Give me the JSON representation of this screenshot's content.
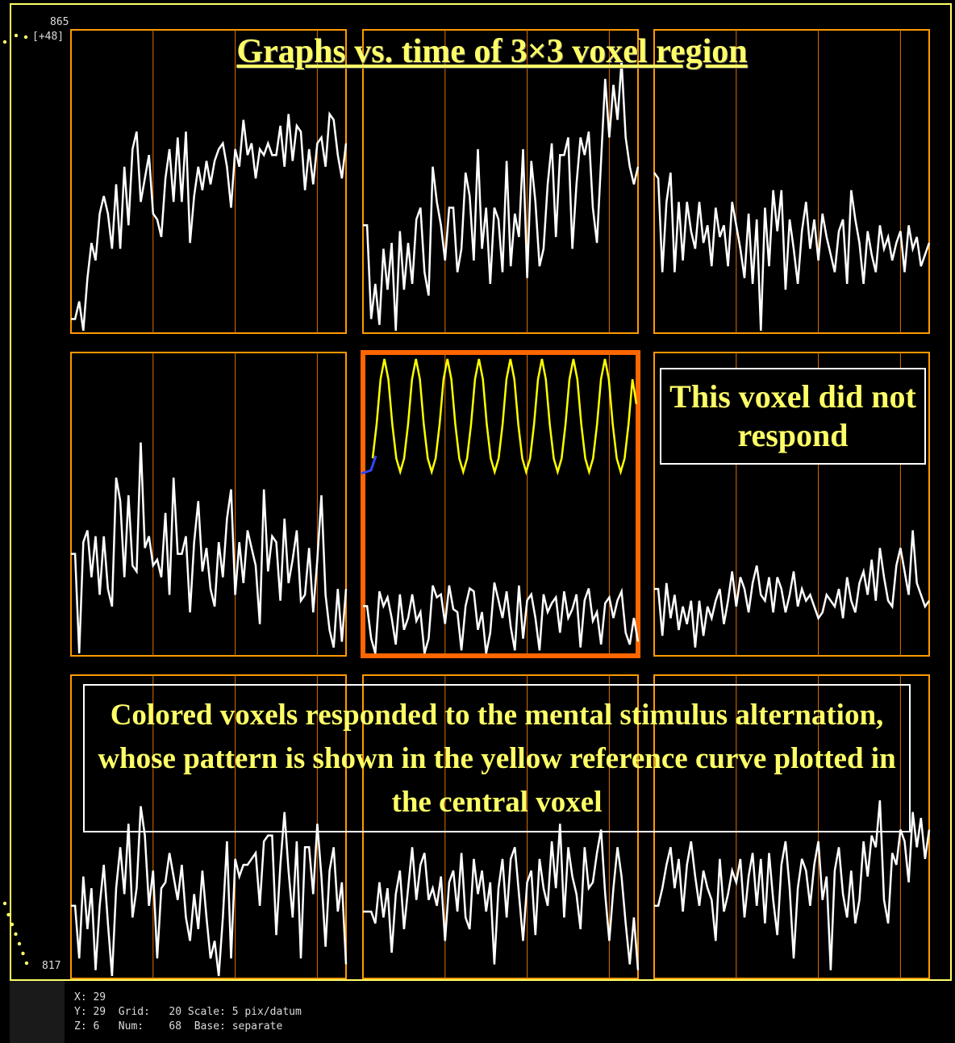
{
  "header": {
    "y_max_label": "865",
    "y_offset_label": "[+48]",
    "y_min_label": "817"
  },
  "annotations": {
    "title": "Graphs vs. time of 3×3 voxel region",
    "note_top_right": "This voxel did not respond",
    "note_bottom": "Colored voxels responded to the mental stimulus alternation, whose pattern is shown in the yellow reference curve plotted in the central voxel"
  },
  "status": {
    "x_label": "X:",
    "x_value": "29",
    "y_label": "Y:",
    "y_value": "29",
    "z_label": "Z:",
    "z_value": "6",
    "grid_label": "Grid:",
    "grid_value": "20",
    "num_label": "Num:",
    "num_value": "68",
    "scale_label": "Scale:",
    "scale_value": "5 pix/datum",
    "base_label": "Base:",
    "base_value": "separate"
  },
  "colors": {
    "frame": "#FFFF66",
    "panel_border": "#FF9900",
    "center_border": "#FF6600",
    "grid_line": "#E07000",
    "trace": "#FFFFFF",
    "reference": "#FFFF00",
    "marker": "#3344FF"
  },
  "chart_data": {
    "type": "line",
    "layout": "3x3 grid of voxel time series",
    "grid_lines_every": 20,
    "num_points": 68,
    "panels": [
      {
        "row": 0,
        "col": 0,
        "values": [
          0.04,
          0.04,
          0.1,
          0.0,
          0.18,
          0.3,
          0.24,
          0.4,
          0.46,
          0.4,
          0.28,
          0.5,
          0.28,
          0.56,
          0.36,
          0.62,
          0.68,
          0.44,
          0.52,
          0.6,
          0.4,
          0.38,
          0.32,
          0.52,
          0.62,
          0.44,
          0.66,
          0.44,
          0.68,
          0.3,
          0.46,
          0.56,
          0.48,
          0.58,
          0.5,
          0.58,
          0.62,
          0.64,
          0.56,
          0.42,
          0.62,
          0.56,
          0.72,
          0.6,
          0.64,
          0.52,
          0.62,
          0.6,
          0.64,
          0.6,
          0.6,
          0.7,
          0.56,
          0.74,
          0.58,
          0.7,
          0.68,
          0.48,
          0.62,
          0.5,
          0.64,
          0.66,
          0.56,
          0.74,
          0.72,
          0.6,
          0.52,
          0.64
        ]
      },
      {
        "row": 0,
        "col": 1,
        "values": [
          0.36,
          0.36,
          0.04,
          0.16,
          0.02,
          0.28,
          0.14,
          0.3,
          0.0,
          0.34,
          0.14,
          0.3,
          0.16,
          0.38,
          0.42,
          0.2,
          0.12,
          0.56,
          0.44,
          0.36,
          0.24,
          0.42,
          0.42,
          0.2,
          0.28,
          0.54,
          0.46,
          0.24,
          0.62,
          0.28,
          0.42,
          0.16,
          0.42,
          0.38,
          0.2,
          0.58,
          0.22,
          0.4,
          0.32,
          0.62,
          0.18,
          0.58,
          0.44,
          0.22,
          0.28,
          0.5,
          0.64,
          0.32,
          0.6,
          0.6,
          0.66,
          0.28,
          0.5,
          0.66,
          0.6,
          0.68,
          0.42,
          0.3,
          0.58,
          0.86,
          0.66,
          0.84,
          0.72,
          0.92,
          0.66,
          0.56,
          0.5,
          0.56
        ]
      },
      {
        "row": 0,
        "col": 2,
        "values": [
          0.54,
          0.52,
          0.2,
          0.44,
          0.54,
          0.2,
          0.44,
          0.24,
          0.44,
          0.34,
          0.28,
          0.44,
          0.3,
          0.36,
          0.22,
          0.42,
          0.32,
          0.36,
          0.22,
          0.44,
          0.36,
          0.28,
          0.18,
          0.4,
          0.16,
          0.38,
          0.0,
          0.42,
          0.22,
          0.48,
          0.34,
          0.48,
          0.14,
          0.38,
          0.28,
          0.16,
          0.34,
          0.44,
          0.28,
          0.38,
          0.24,
          0.4,
          0.32,
          0.26,
          0.2,
          0.34,
          0.38,
          0.16,
          0.48,
          0.38,
          0.3,
          0.16,
          0.34,
          0.26,
          0.2,
          0.36,
          0.28,
          0.32,
          0.24,
          0.3,
          0.34,
          0.2,
          0.36,
          0.28,
          0.32,
          0.22,
          0.26,
          0.3
        ]
      },
      {
        "row": 1,
        "col": 0,
        "values": [
          0.34,
          0.34,
          0.0,
          0.38,
          0.42,
          0.26,
          0.4,
          0.2,
          0.4,
          0.22,
          0.16,
          0.6,
          0.52,
          0.26,
          0.54,
          0.3,
          0.28,
          0.72,
          0.36,
          0.4,
          0.3,
          0.32,
          0.26,
          0.48,
          0.2,
          0.6,
          0.34,
          0.34,
          0.4,
          0.14,
          0.38,
          0.52,
          0.28,
          0.36,
          0.22,
          0.16,
          0.38,
          0.26,
          0.46,
          0.56,
          0.2,
          0.38,
          0.24,
          0.42,
          0.36,
          0.3,
          0.1,
          0.56,
          0.28,
          0.4,
          0.38,
          0.18,
          0.46,
          0.24,
          0.32,
          0.42,
          0.18,
          0.2,
          0.36,
          0.14,
          0.32,
          0.54,
          0.2,
          0.08,
          0.02,
          0.22,
          0.04,
          0.22
        ]
      },
      {
        "row": 1,
        "col": 1,
        "values": [
          0.32,
          0.32,
          0.1,
          0.0,
          0.42,
          0.32,
          0.38,
          0.24,
          0.06,
          0.4,
          0.16,
          0.24,
          0.4,
          0.22,
          0.28,
          0.0,
          0.1,
          0.46,
          0.38,
          0.4,
          0.2,
          0.46,
          0.3,
          0.28,
          0.02,
          0.32,
          0.44,
          0.42,
          0.16,
          0.28,
          0.0,
          0.14,
          0.48,
          0.36,
          0.24,
          0.42,
          0.18,
          0.02,
          0.46,
          0.1,
          0.36,
          0.4,
          0.24,
          0.02,
          0.4,
          0.28,
          0.34,
          0.38,
          0.14,
          0.42,
          0.24,
          0.3,
          0.4,
          0.04,
          0.36,
          0.44,
          0.22,
          0.28,
          0.06,
          0.34,
          0.38,
          0.24,
          0.36,
          0.42,
          0.14,
          0.06,
          0.24,
          0.08
        ]
      },
      {
        "row": 1,
        "col": 2,
        "values": [
          0.22,
          0.22,
          0.06,
          0.24,
          0.12,
          0.2,
          0.08,
          0.16,
          0.1,
          0.18,
          0.02,
          0.18,
          0.06,
          0.16,
          0.12,
          0.18,
          0.22,
          0.1,
          0.18,
          0.28,
          0.16,
          0.26,
          0.22,
          0.14,
          0.24,
          0.3,
          0.2,
          0.18,
          0.26,
          0.14,
          0.26,
          0.22,
          0.14,
          0.2,
          0.28,
          0.16,
          0.22,
          0.18,
          0.2,
          0.16,
          0.12,
          0.14,
          0.2,
          0.18,
          0.16,
          0.22,
          0.12,
          0.26,
          0.18,
          0.14,
          0.24,
          0.28,
          0.2,
          0.32,
          0.18,
          0.36,
          0.26,
          0.18,
          0.16,
          0.3,
          0.36,
          0.28,
          0.2,
          0.42,
          0.24,
          0.2,
          0.16,
          0.18
        ]
      },
      {
        "row": 2,
        "col": 0,
        "values": [
          0.24,
          0.24,
          0.06,
          0.34,
          0.16,
          0.3,
          0.02,
          0.24,
          0.38,
          0.18,
          0.0,
          0.3,
          0.44,
          0.28,
          0.52,
          0.2,
          0.3,
          0.58,
          0.48,
          0.24,
          0.36,
          0.06,
          0.3,
          0.32,
          0.42,
          0.34,
          0.26,
          0.38,
          0.2,
          0.12,
          0.28,
          0.16,
          0.36,
          0.2,
          0.06,
          0.12,
          0.0,
          0.2,
          0.46,
          0.06,
          0.4,
          0.34,
          0.38,
          0.38,
          0.4,
          0.42,
          0.24,
          0.46,
          0.48,
          0.48,
          0.14,
          0.38,
          0.56,
          0.36,
          0.2,
          0.46,
          0.06,
          0.44,
          0.44,
          0.28,
          0.52,
          0.34,
          0.1,
          0.36,
          0.44,
          0.22,
          0.32,
          0.04
        ]
      },
      {
        "row": 2,
        "col": 1,
        "values": [
          0.22,
          0.22,
          0.22,
          0.18,
          0.32,
          0.2,
          0.3,
          0.08,
          0.28,
          0.36,
          0.16,
          0.3,
          0.44,
          0.26,
          0.38,
          0.42,
          0.26,
          0.3,
          0.24,
          0.34,
          0.12,
          0.32,
          0.36,
          0.22,
          0.42,
          0.2,
          0.16,
          0.4,
          0.28,
          0.36,
          0.22,
          0.32,
          0.04,
          0.3,
          0.4,
          0.2,
          0.4,
          0.44,
          0.28,
          0.12,
          0.32,
          0.36,
          0.14,
          0.4,
          0.3,
          0.24,
          0.46,
          0.3,
          0.52,
          0.2,
          0.44,
          0.34,
          0.28,
          0.16,
          0.44,
          0.3,
          0.32,
          0.42,
          0.5,
          0.28,
          0.12,
          0.3,
          0.44,
          0.34,
          0.18,
          0.04,
          0.2,
          0.02
        ]
      },
      {
        "row": 2,
        "col": 2,
        "values": [
          0.24,
          0.24,
          0.3,
          0.38,
          0.44,
          0.3,
          0.4,
          0.22,
          0.38,
          0.46,
          0.34,
          0.24,
          0.36,
          0.3,
          0.26,
          0.12,
          0.4,
          0.22,
          0.28,
          0.36,
          0.32,
          0.4,
          0.2,
          0.34,
          0.42,
          0.24,
          0.4,
          0.18,
          0.42,
          0.26,
          0.14,
          0.38,
          0.46,
          0.3,
          0.06,
          0.3,
          0.4,
          0.36,
          0.24,
          0.38,
          0.46,
          0.26,
          0.34,
          0.02,
          0.36,
          0.44,
          0.28,
          0.2,
          0.36,
          0.18,
          0.26,
          0.46,
          0.34,
          0.48,
          0.44,
          0.6,
          0.26,
          0.18,
          0.42,
          0.38,
          0.5,
          0.46,
          0.32,
          0.56,
          0.44,
          0.54,
          0.4,
          0.5
        ]
      }
    ],
    "reference_curve": {
      "panel_row": 1,
      "panel_col": 1,
      "period": 8,
      "values": [
        0.12,
        0.42,
        0.82,
        1.0,
        0.82,
        0.42,
        0.12,
        0.0,
        0.12,
        0.42,
        0.82,
        1.0,
        0.82,
        0.42,
        0.12,
        0.0,
        0.12,
        0.42,
        0.82,
        1.0,
        0.82,
        0.42,
        0.12,
        0.0,
        0.12,
        0.42,
        0.82,
        1.0,
        0.82,
        0.42,
        0.12,
        0.0,
        0.12,
        0.42,
        0.82,
        1.0,
        0.82,
        0.42,
        0.12,
        0.0,
        0.12,
        0.42,
        0.82,
        1.0,
        0.82,
        0.42,
        0.12,
        0.0,
        0.12,
        0.42,
        0.82,
        1.0,
        0.82,
        0.42,
        0.12,
        0.0,
        0.12,
        0.42,
        0.82,
        1.0,
        0.82,
        0.42,
        0.12,
        0.0,
        0.12,
        0.42,
        0.82,
        0.6
      ]
    }
  }
}
